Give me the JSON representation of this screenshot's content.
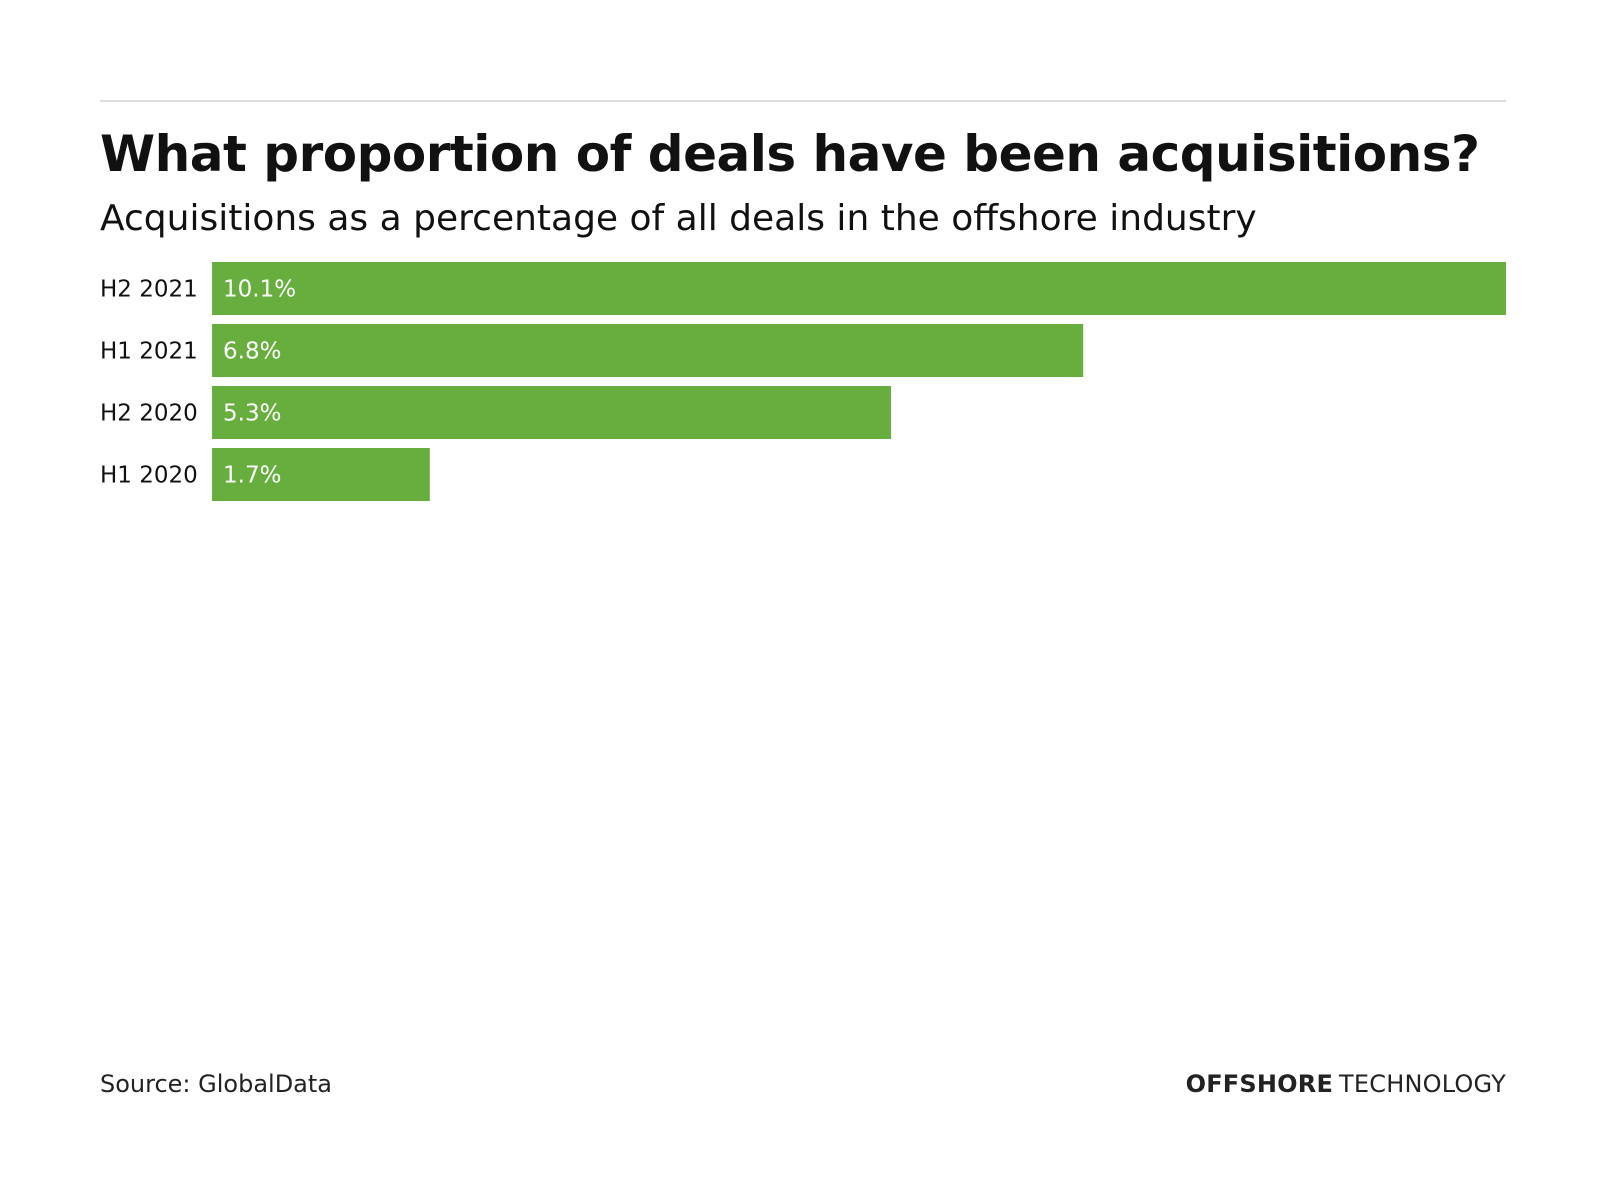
{
  "header": {
    "title": "What proportion of deals have been acquisitions?",
    "subtitle": "Acquisitions as a percentage of all deals in the offshore industry"
  },
  "footer": {
    "source": "Source: GlobalData",
    "brand_strong": "OFFSHORE",
    "brand_light": "TECHNOLOGY"
  },
  "colors": {
    "bar": "#67ae3e",
    "bar_label": "#ffffff",
    "category_label": "#111111"
  },
  "chart_data": {
    "type": "bar",
    "orientation": "horizontal",
    "title": "What proportion of deals have been acquisitions?",
    "subtitle": "Acquisitions as a percentage of all deals in the offshore industry",
    "categories": [
      "H2 2021",
      "H1 2021",
      "H2 2020",
      "H1 2020"
    ],
    "values": [
      10.1,
      6.8,
      5.3,
      1.7
    ],
    "value_labels": [
      "10.1%",
      "6.8%",
      "5.3%",
      "1.7%"
    ],
    "unit": "%",
    "xlim": [
      0,
      10.1
    ],
    "xlabel": "",
    "ylabel": "",
    "grid": false,
    "legend": "none"
  }
}
